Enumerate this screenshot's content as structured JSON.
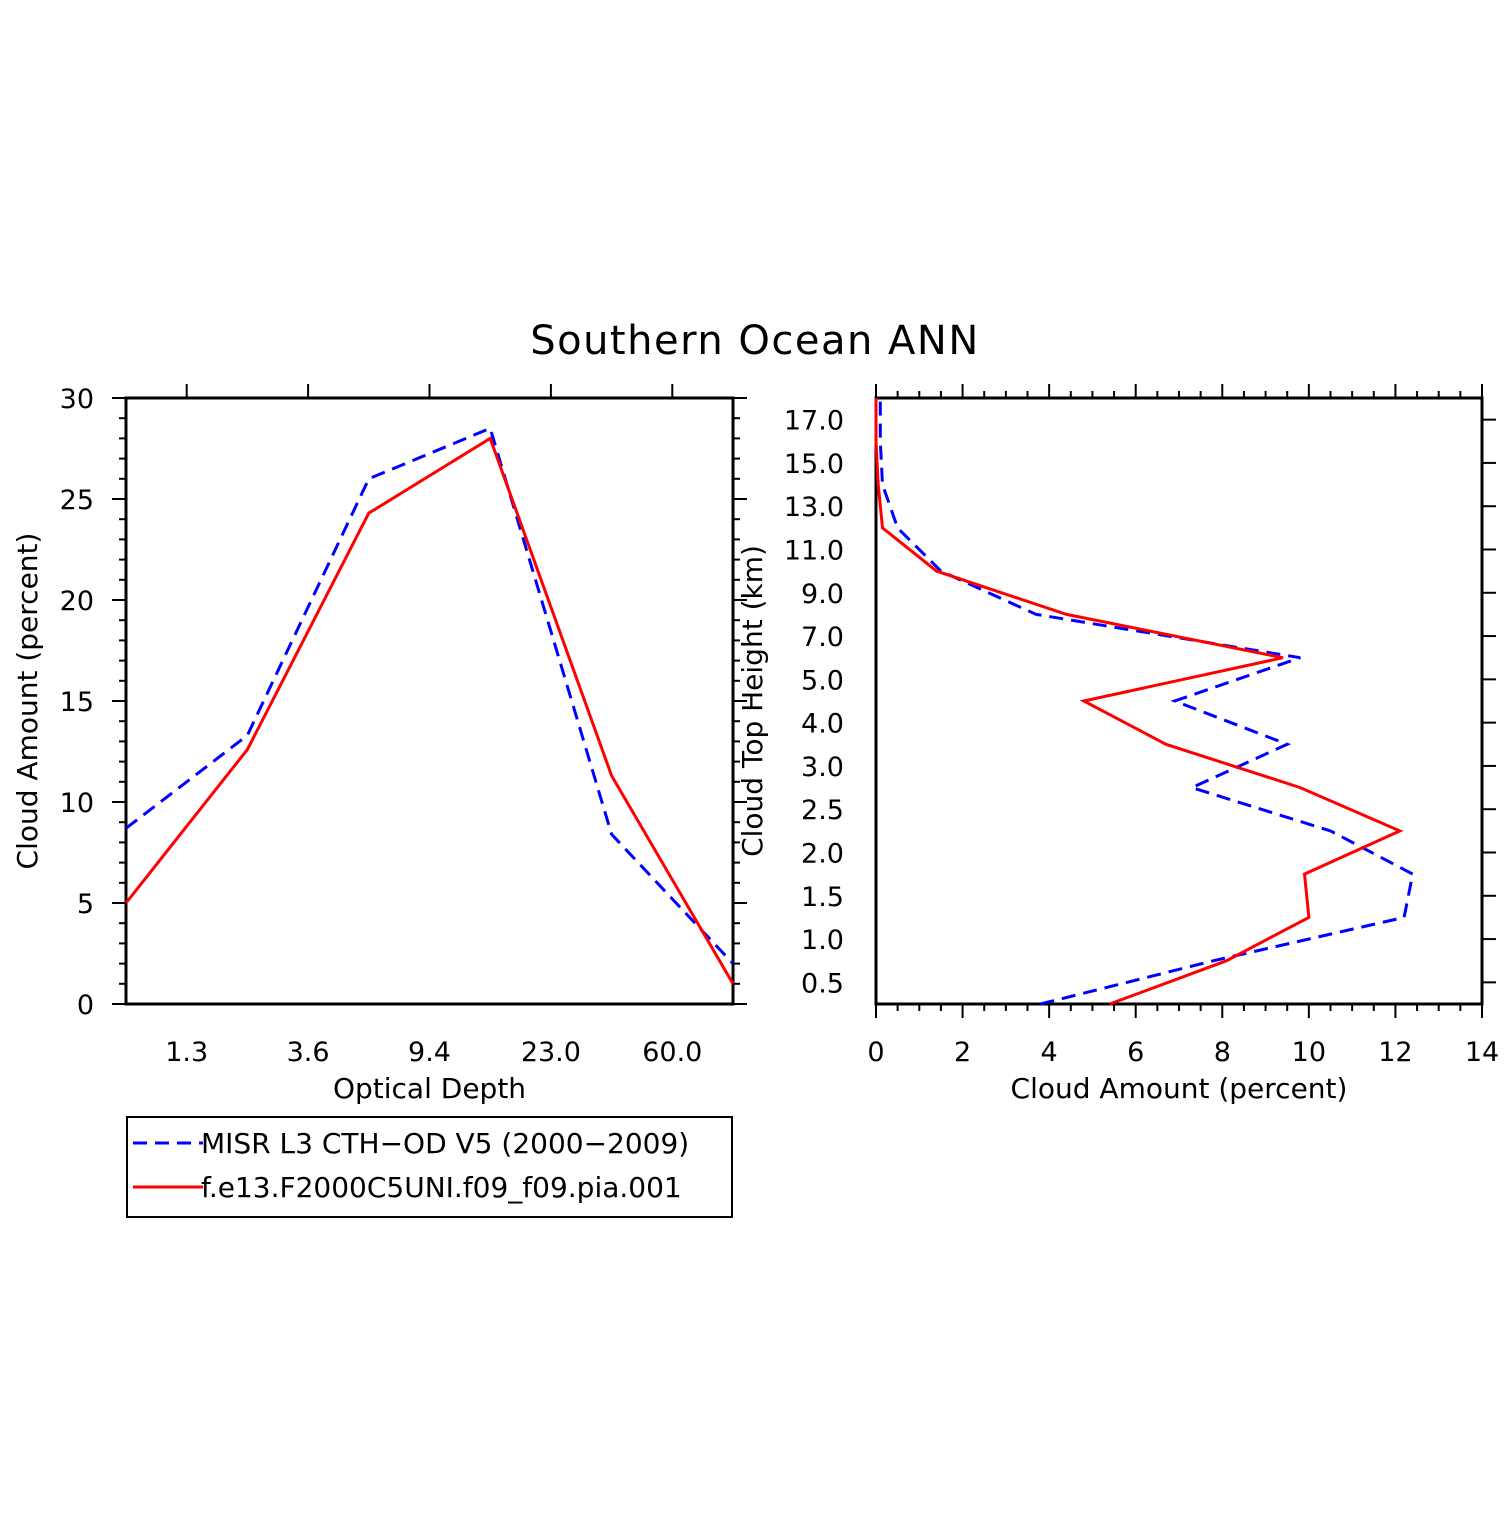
{
  "title": "Southern Ocean ANN",
  "legend": {
    "items": [
      {
        "label": "MISR L3 CTH−OD V5 (2000−2009)",
        "color": "#0000ff",
        "dash": true
      },
      {
        "label": "f.e13.F2000C5UNI.f09_f09.pia.001",
        "color": "#ff0000",
        "dash": false
      }
    ]
  },
  "chart_data": [
    {
      "type": "line",
      "xlabel": "Optical Depth",
      "ylabel": "Cloud Amount (percent)",
      "x_tick_labels": [
        "1.3",
        "3.6",
        "9.4",
        "23.0",
        "60.0"
      ],
      "x_tick_positions": [
        0.5,
        1.5,
        2.5,
        3.5,
        4.5
      ],
      "xlim": [
        0,
        5
      ],
      "ylim": [
        0,
        30
      ],
      "y_ticks": [
        0,
        5,
        10,
        15,
        20,
        25,
        30
      ],
      "x": [
        0,
        1,
        2,
        3,
        4,
        5
      ],
      "series": [
        {
          "name": "MISR L3 CTH−OD V5 (2000−2009)",
          "color": "#0000ff",
          "dash": true,
          "values": [
            8.7,
            13.3,
            26.0,
            28.5,
            8.4,
            2.0
          ]
        },
        {
          "name": "f.e13.F2000C5UNI.f09_f09.pia.001",
          "color": "#ff0000",
          "dash": false,
          "values": [
            5.0,
            12.6,
            24.3,
            28.0,
            11.3,
            1.0
          ]
        }
      ]
    },
    {
      "type": "line",
      "xlabel": "Cloud Amount (percent)",
      "ylabel": "Cloud Top Height (km)",
      "xlim": [
        0,
        14
      ],
      "x_ticks": [
        0,
        2,
        4,
        6,
        8,
        10,
        12,
        14
      ],
      "y_tick_labels": [
        "0.5",
        "1.0",
        "1.5",
        "2.0",
        "2.5",
        "3.0",
        "4.0",
        "5.0",
        "7.0",
        "9.0",
        "11.0",
        "13.0",
        "15.0",
        "17.0"
      ],
      "y_tick_positions": [
        0.5,
        1.5,
        2.5,
        3.5,
        4.5,
        5.5,
        6.5,
        7.5,
        8.5,
        9.5,
        10.5,
        11.5,
        12.5,
        13.5
      ],
      "ylim": [
        0,
        14
      ],
      "y_levels": [
        0,
        1,
        2,
        3,
        4,
        5,
        6,
        7,
        8,
        9,
        10,
        11,
        12,
        13,
        14
      ],
      "series": [
        {
          "name": "MISR L3 CTH−OD V5 (2000−2009)",
          "color": "#0000ff",
          "dash": true,
          "values": [
            3.8,
            7.8,
            12.2,
            12.4,
            10.5,
            7.3,
            9.5,
            6.9,
            9.8,
            3.7,
            1.5,
            0.5,
            0.15,
            0.1,
            0.1
          ]
        },
        {
          "name": "f.e13.F2000C5UNI.f09_f09.pia.001",
          "color": "#ff0000",
          "dash": false,
          "values": [
            5.4,
            8.1,
            10.0,
            9.9,
            12.1,
            9.8,
            6.7,
            4.8,
            9.4,
            4.4,
            1.4,
            0.15,
            0.05,
            0.0,
            0.0
          ]
        }
      ]
    }
  ]
}
